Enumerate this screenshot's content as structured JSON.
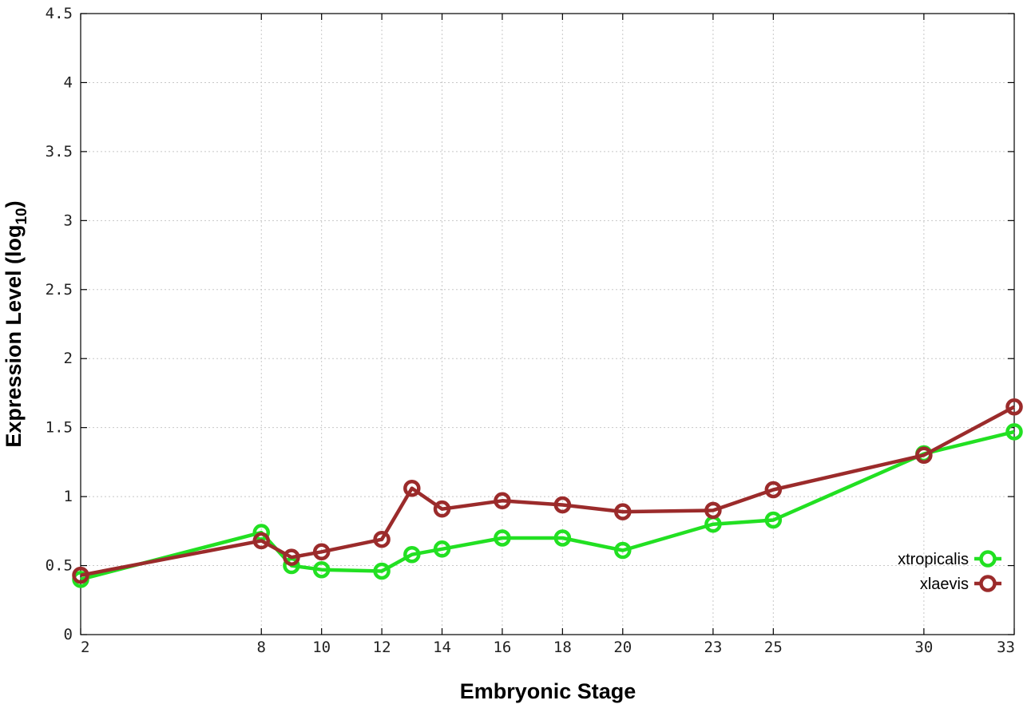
{
  "chart_data": {
    "type": "line",
    "title": "",
    "xlabel": "Embryonic Stage",
    "ylabel_main": "Expression Level (log",
    "ylabel_sub": "10",
    "ylabel_close": ")",
    "xlim": [
      2,
      33
    ],
    "ylim": [
      0,
      4.5
    ],
    "x_ticks": [
      2,
      8,
      10,
      12,
      14,
      16,
      18,
      20,
      23,
      25,
      30,
      33
    ],
    "y_ticks": [
      0,
      0.5,
      1,
      1.5,
      2,
      2.5,
      3,
      3.5,
      4,
      4.5
    ],
    "y_tick_labels": [
      "0",
      "0.5",
      "1",
      "1.5",
      "2",
      "2.5",
      "3",
      "3.5",
      "4",
      "4.5"
    ],
    "grid": true,
    "legend_position": "lower-right",
    "series": [
      {
        "name": "xtropicalis",
        "color": "#22e022",
        "x": [
          2,
          8,
          9,
          10,
          12,
          13,
          14,
          16,
          18,
          20,
          23,
          25,
          30,
          33
        ],
        "values": [
          0.4,
          0.74,
          0.5,
          0.47,
          0.46,
          0.58,
          0.62,
          0.7,
          0.7,
          0.61,
          0.8,
          0.83,
          1.31,
          1.47
        ]
      },
      {
        "name": "xlaevis",
        "color": "#9b2b2b",
        "x": [
          2,
          8,
          9,
          10,
          12,
          13,
          14,
          16,
          18,
          20,
          23,
          25,
          30,
          33
        ],
        "values": [
          0.43,
          0.68,
          0.56,
          0.6,
          0.69,
          1.06,
          0.91,
          0.97,
          0.94,
          0.89,
          0.9,
          1.05,
          1.3,
          1.65
        ]
      }
    ]
  }
}
